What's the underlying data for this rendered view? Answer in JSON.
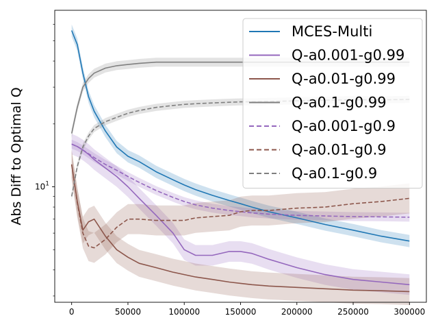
{
  "chart_data": {
    "type": "line",
    "title": "",
    "xlabel": "",
    "ylabel": "Abs Diff to Optimal Q",
    "yscale": "log",
    "xlim": [
      -15000,
      315000
    ],
    "ylim": [
      2.8,
      70
    ],
    "x_ticks": [
      0,
      50000,
      100000,
      150000,
      200000,
      250000,
      300000
    ],
    "x_tick_labels": [
      "0",
      "50000",
      "100000",
      "150000",
      "200000",
      "250000",
      "300000"
    ],
    "y_major_ticks": [
      10
    ],
    "y_major_tick_labels": [
      "10^1"
    ],
    "y_tick_label": {
      "base": "10",
      "exp": "1"
    },
    "y_minor_ticks": [
      3,
      4,
      5,
      6,
      7,
      8,
      9,
      20,
      30,
      40,
      50,
      60
    ],
    "grid": false,
    "legend_position": "top-right",
    "x": [
      0,
      5000,
      10000,
      15000,
      20000,
      30000,
      40000,
      50000,
      60000,
      75000,
      90000,
      100000,
      110000,
      125000,
      140000,
      150000,
      160000,
      175000,
      200000,
      225000,
      250000,
      275000,
      300000
    ],
    "series": [
      {
        "name": "MCES-Multi",
        "color": "#1f77b4",
        "dash": "solid",
        "band": 0.07,
        "values": [
          56,
          48,
          35,
          27,
          23,
          18.5,
          15.5,
          14,
          13.2,
          11.8,
          10.8,
          10.2,
          9.7,
          9.1,
          8.6,
          8.3,
          8.0,
          7.6,
          7.1,
          6.6,
          6.2,
          5.8,
          5.5
        ]
      },
      {
        "name": "Q-a0.001-g0.99",
        "color": "#9467bd",
        "dash": "solid",
        "band": 0.12,
        "values": [
          16,
          15.6,
          15,
          14.3,
          13.5,
          12.3,
          11.2,
          10,
          8.8,
          7.3,
          6.0,
          5.0,
          4.7,
          4.7,
          4.9,
          4.9,
          4.8,
          4.5,
          4.1,
          3.8,
          3.6,
          3.5,
          3.4
        ]
      },
      {
        "name": "Q-a0.01-g0.99",
        "color": "#8c564b",
        "dash": "solid",
        "band": 0.16,
        "values": [
          12.8,
          8.5,
          6.2,
          6.8,
          7.0,
          5.8,
          5.0,
          4.6,
          4.3,
          4.1,
          3.9,
          3.8,
          3.7,
          3.6,
          3.5,
          3.45,
          3.4,
          3.35,
          3.3,
          3.25,
          3.2,
          3.18,
          3.15
        ]
      },
      {
        "name": "Q-a0.1-g0.99",
        "color": "#7f7f7f",
        "dash": "solid",
        "band": 0.05,
        "values": [
          18,
          24,
          30,
          33,
          35,
          37,
          38,
          38.5,
          39,
          39.5,
          39.5,
          39.5,
          39.5,
          39.5,
          39.5,
          39.5,
          39.5,
          39.5,
          39.5,
          39.5,
          39.5,
          39.5,
          39.5
        ]
      },
      {
        "name": "Q-a0.001-g0.9",
        "color": "#9467bd",
        "dash": "dashed",
        "band": 0.05,
        "values": [
          16,
          15.6,
          15,
          14.4,
          13.8,
          12.8,
          12,
          11.2,
          10.5,
          9.6,
          8.9,
          8.5,
          8.2,
          7.9,
          7.7,
          7.6,
          7.5,
          7.4,
          7.3,
          7.25,
          7.2,
          7.18,
          7.15
        ]
      },
      {
        "name": "Q-a0.01-g0.9",
        "color": "#8c564b",
        "dash": "dashed",
        "band": 0.18,
        "values": [
          12.8,
          8.4,
          6.0,
          5.2,
          5.1,
          5.6,
          6.4,
          7.0,
          7.0,
          6.9,
          6.9,
          6.9,
          7.1,
          7.2,
          7.3,
          7.6,
          7.7,
          7.7,
          7.9,
          8.0,
          8.3,
          8.5,
          8.8
        ]
      },
      {
        "name": "Q-a0.1-g0.9",
        "color": "#7f7f7f",
        "dash": "dashed",
        "band": 0.04,
        "values": [
          9,
          12.5,
          15.5,
          17.5,
          19,
          20.5,
          21.5,
          22.5,
          23.2,
          24,
          24.5,
          24.8,
          25,
          25.2,
          25.4,
          25.5,
          25.5,
          25.6,
          25.8,
          26,
          26.1,
          26.1,
          26.2
        ]
      }
    ]
  }
}
